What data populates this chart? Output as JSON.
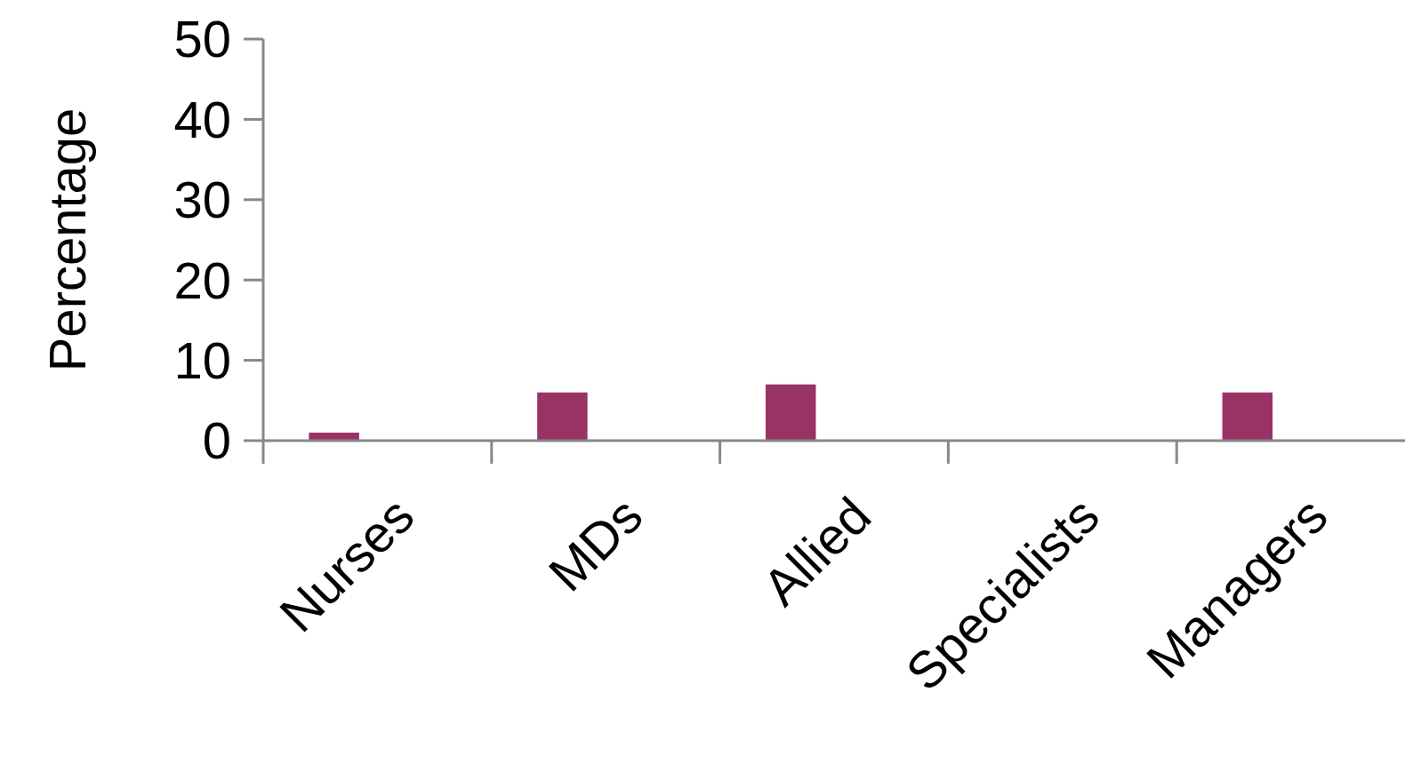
{
  "chart_data": {
    "type": "bar",
    "ylabel": "Percentage",
    "categories": [
      "Nurses",
      "MDs",
      "Allied",
      "Specialists",
      "Managers"
    ],
    "values": [
      1,
      6,
      7,
      0,
      6
    ],
    "color": "#993366",
    "ylim": [
      0,
      50
    ],
    "yticks": [
      0,
      10,
      20,
      30,
      40,
      50
    ],
    "grid": false
  }
}
